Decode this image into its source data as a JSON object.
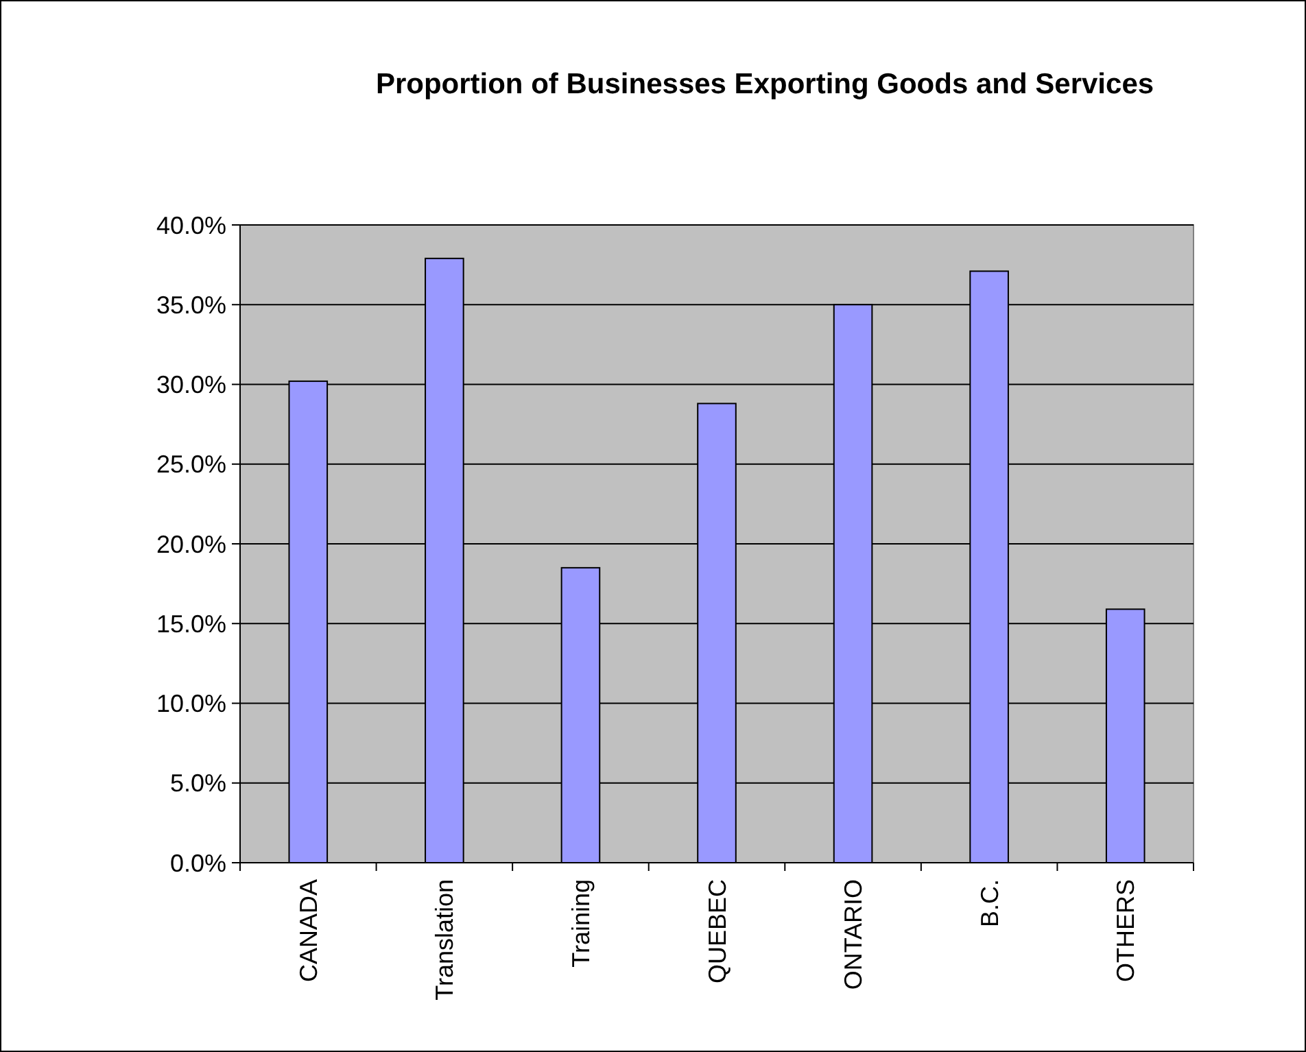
{
  "chart_data": {
    "type": "bar",
    "title": "Proportion of Businesses Exporting Goods and Services",
    "categories": [
      "CANADA",
      "Translation",
      "Training",
      "QUEBEC",
      "ONTARIO",
      "B.C.",
      "OTHERS"
    ],
    "values": [
      30.2,
      37.9,
      18.5,
      28.8,
      35.0,
      37.1,
      15.9
    ],
    "color": "#9999ff",
    "ylim": [
      0,
      40
    ],
    "yticks": [
      {
        "value": 0,
        "label": "0.0%"
      },
      {
        "value": 5,
        "label": "5.0%"
      },
      {
        "value": 10,
        "label": "10.0%"
      },
      {
        "value": 15,
        "label": "15.0%"
      },
      {
        "value": 20,
        "label": "20.0%"
      },
      {
        "value": 25,
        "label": "25.0%"
      },
      {
        "value": 30,
        "label": "30.0%"
      },
      {
        "value": 35,
        "label": "35.0%"
      },
      {
        "value": 40,
        "label": "40.0%"
      }
    ],
    "grid": "y"
  }
}
